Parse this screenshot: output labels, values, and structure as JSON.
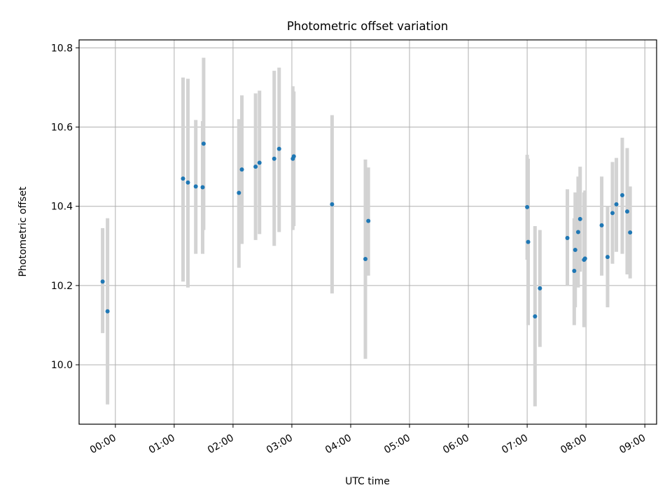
{
  "chart_data": {
    "type": "scatter",
    "title": "Photometric offset variation",
    "xlabel": "UTC time",
    "ylabel": "Photometric offset",
    "xlim": [
      "23:23",
      "09:12"
    ],
    "ylim": [
      9.85,
      10.82
    ],
    "x_ticks": [
      "00:00",
      "01:00",
      "02:00",
      "03:00",
      "04:00",
      "05:00",
      "06:00",
      "07:00",
      "08:00",
      "09:00"
    ],
    "y_ticks": [
      10.0,
      10.2,
      10.4,
      10.6,
      10.8
    ],
    "y_tick_labels": [
      "10.0",
      "10.2",
      "10.4",
      "10.6",
      "10.8"
    ],
    "grid": true,
    "colors": {
      "point": "#1f77b4",
      "errorbar": "#d3d3d3",
      "grid": "#b0b0b0"
    },
    "series": [
      {
        "points": [
          {
            "x": "23:47",
            "y": 10.21,
            "lo": 10.08,
            "hi": 10.345
          },
          {
            "x": "23:52",
            "y": 10.135,
            "lo": 9.9,
            "hi": 10.37
          },
          {
            "x": "01:09",
            "y": 10.47,
            "lo": 10.21,
            "hi": 10.725
          },
          {
            "x": "01:14",
            "y": 10.46,
            "lo": 10.195,
            "hi": 10.722
          },
          {
            "x": "01:22",
            "y": 10.45,
            "lo": 10.28,
            "hi": 10.618
          },
          {
            "x": "01:29",
            "y": 10.448,
            "lo": 10.28,
            "hi": 10.615
          },
          {
            "x": "01:30",
            "y": 10.558,
            "lo": 10.34,
            "hi": 10.775
          },
          {
            "x": "02:06",
            "y": 10.434,
            "lo": 10.245,
            "hi": 10.62
          },
          {
            "x": "02:09",
            "y": 10.493,
            "lo": 10.305,
            "hi": 10.68
          },
          {
            "x": "02:23",
            "y": 10.5,
            "lo": 10.315,
            "hi": 10.685
          },
          {
            "x": "02:27",
            "y": 10.51,
            "lo": 10.33,
            "hi": 10.692
          },
          {
            "x": "02:42",
            "y": 10.52,
            "lo": 10.3,
            "hi": 10.742
          },
          {
            "x": "02:47",
            "y": 10.545,
            "lo": 10.335,
            "hi": 10.75
          },
          {
            "x": "03:01",
            "y": 10.52,
            "lo": 10.34,
            "hi": 10.703
          },
          {
            "x": "03:02",
            "y": 10.526,
            "lo": 10.35,
            "hi": 10.69
          },
          {
            "x": "03:41",
            "y": 10.405,
            "lo": 10.18,
            "hi": 10.63
          },
          {
            "x": "04:15",
            "y": 10.267,
            "lo": 10.015,
            "hi": 10.518
          },
          {
            "x": "04:18",
            "y": 10.363,
            "lo": 10.225,
            "hi": 10.498
          },
          {
            "x": "07:00",
            "y": 10.398,
            "lo": 10.265,
            "hi": 10.53
          },
          {
            "x": "07:01",
            "y": 10.31,
            "lo": 10.1,
            "hi": 10.52
          },
          {
            "x": "07:08",
            "y": 10.122,
            "lo": 9.895,
            "hi": 10.35
          },
          {
            "x": "07:13",
            "y": 10.193,
            "lo": 10.045,
            "hi": 10.34
          },
          {
            "x": "07:41",
            "y": 10.32,
            "lo": 10.2,
            "hi": 10.443
          },
          {
            "x": "07:48",
            "y": 10.237,
            "lo": 10.1,
            "hi": 10.37
          },
          {
            "x": "07:49",
            "y": 10.29,
            "lo": 10.145,
            "hi": 10.435
          },
          {
            "x": "07:52",
            "y": 10.335,
            "lo": 10.195,
            "hi": 10.475
          },
          {
            "x": "07:54",
            "y": 10.368,
            "lo": 10.235,
            "hi": 10.5
          },
          {
            "x": "07:58",
            "y": 10.265,
            "lo": 10.095,
            "hi": 10.435
          },
          {
            "x": "07:59",
            "y": 10.268,
            "lo": 10.095,
            "hi": 10.44
          },
          {
            "x": "08:16",
            "y": 10.352,
            "lo": 10.225,
            "hi": 10.475
          },
          {
            "x": "08:22",
            "y": 10.272,
            "lo": 10.145,
            "hi": 10.4
          },
          {
            "x": "08:27",
            "y": 10.383,
            "lo": 10.255,
            "hi": 10.512
          },
          {
            "x": "08:31",
            "y": 10.405,
            "lo": 10.285,
            "hi": 10.522
          },
          {
            "x": "08:37",
            "y": 10.428,
            "lo": 10.28,
            "hi": 10.573
          },
          {
            "x": "08:42",
            "y": 10.387,
            "lo": 10.228,
            "hi": 10.547
          },
          {
            "x": "08:45",
            "y": 10.334,
            "lo": 10.218,
            "hi": 10.45
          }
        ]
      }
    ]
  }
}
